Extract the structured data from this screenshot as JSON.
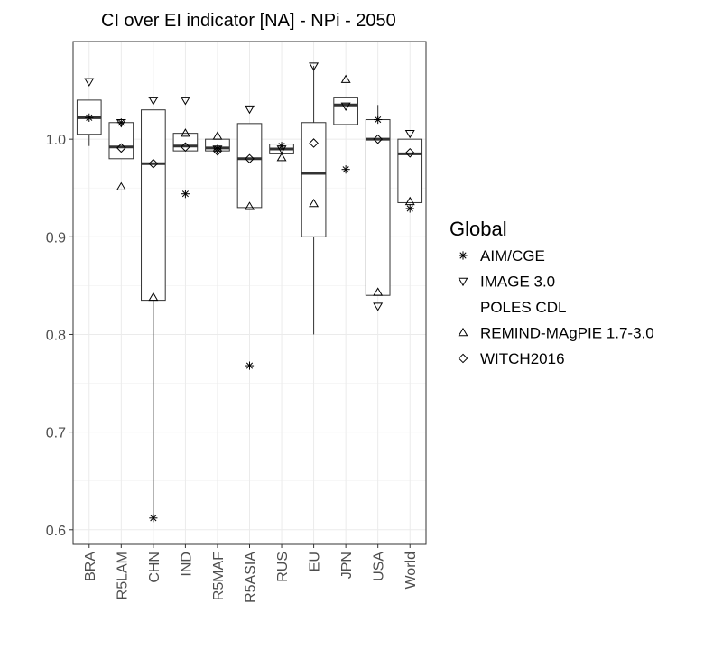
{
  "chart_data": {
    "type": "box",
    "title": "CI over EI indicator [NA] - NPi - 2050",
    "xlabel": "",
    "ylabel": "",
    "ylim": [
      0.585,
      1.1
    ],
    "yticks": [
      0.6,
      0.7,
      0.8,
      0.9,
      1.0
    ],
    "ytick_labels": [
      "0.6",
      "0.7",
      "0.8",
      "0.9",
      "1.0"
    ],
    "grid": true,
    "legend": {
      "title": "Global",
      "placement": "right",
      "entries": [
        {
          "label": "AIM/CGE",
          "shape": "asterisk"
        },
        {
          "label": "IMAGE 3.0",
          "shape": "triangle-down"
        },
        {
          "label": "POLES CDL",
          "shape": "none"
        },
        {
          "label": "REMIND-MAgPIE 1.7-3.0",
          "shape": "triangle-up"
        },
        {
          "label": "WITCH2016",
          "shape": "diamond"
        }
      ]
    },
    "categories": [
      "BRA",
      "R5LAM",
      "CHN",
      "IND",
      "R5MAF",
      "R5ASIA",
      "RUS",
      "EU",
      "JPN",
      "USA",
      "World"
    ],
    "boxes": [
      {
        "q1": 1.005,
        "median": 1.022,
        "q3": 1.04,
        "wlo": 0.993,
        "whi": 1.04
      },
      {
        "q1": 0.98,
        "median": 0.992,
        "q3": 1.017,
        "wlo": 0.98,
        "whi": 1.017
      },
      {
        "q1": 0.835,
        "median": 0.975,
        "q3": 1.03,
        "wlo": 0.612,
        "whi": 1.03
      },
      {
        "q1": 0.988,
        "median": 0.993,
        "q3": 1.006,
        "wlo": 0.988,
        "whi": 1.006
      },
      {
        "q1": 0.988,
        "median": 0.991,
        "q3": 1.0,
        "wlo": 0.988,
        "whi": 1.0
      },
      {
        "q1": 0.93,
        "median": 0.98,
        "q3": 1.016,
        "wlo": 0.93,
        "whi": 1.016
      },
      {
        "q1": 0.985,
        "median": 0.99,
        "q3": 0.995,
        "wlo": 0.985,
        "whi": 0.995
      },
      {
        "q1": 0.9,
        "median": 0.965,
        "q3": 1.017,
        "wlo": 0.8,
        "whi": 1.075
      },
      {
        "q1": 1.015,
        "median": 1.035,
        "q3": 1.043,
        "wlo": 1.015,
        "whi": 1.043
      },
      {
        "q1": 0.84,
        "median": 1.0,
        "q3": 1.02,
        "wlo": 0.84,
        "whi": 1.035
      },
      {
        "q1": 0.935,
        "median": 0.985,
        "q3": 1.0,
        "wlo": 0.935,
        "whi": 1.0
      }
    ],
    "series": [
      {
        "name": "AIM/CGE",
        "shape": "asterisk",
        "values": [
          1.022,
          1.017,
          0.612,
          0.944,
          0.99,
          0.768,
          0.993,
          null,
          0.969,
          1.02,
          0.929
        ]
      },
      {
        "name": "IMAGE 3.0",
        "shape": "triangle-down",
        "values": [
          1.059,
          1.017,
          1.04,
          1.04,
          0.99,
          1.031,
          0.99,
          1.075,
          1.034,
          0.829,
          1.006
        ]
      },
      {
        "name": "POLES CDL",
        "shape": "none",
        "values": [
          null,
          null,
          null,
          null,
          null,
          null,
          null,
          null,
          null,
          null,
          null
        ]
      },
      {
        "name": "REMIND-MAgPIE 1.7-3.0",
        "shape": "triangle-up",
        "values": [
          null,
          0.951,
          0.838,
          1.006,
          1.003,
          0.931,
          0.981,
          0.934,
          1.061,
          0.843,
          0.936
        ]
      },
      {
        "name": "WITCH2016",
        "shape": "diamond",
        "values": [
          null,
          0.991,
          0.975,
          0.992,
          0.988,
          0.98,
          null,
          0.996,
          null,
          1.0,
          0.986
        ]
      }
    ]
  }
}
